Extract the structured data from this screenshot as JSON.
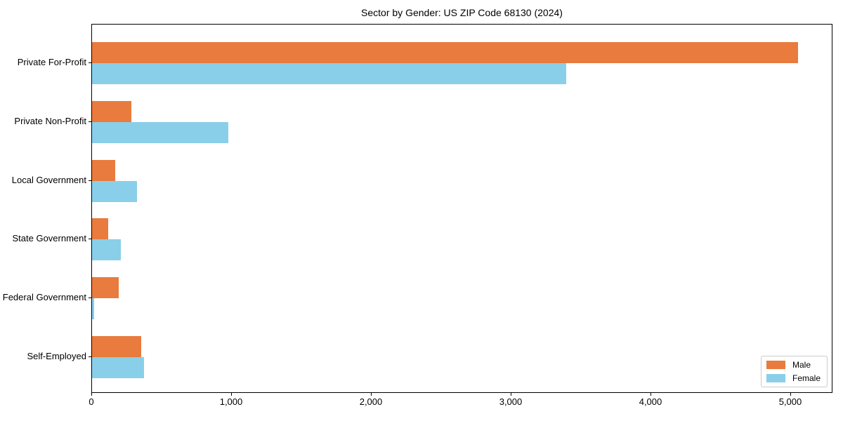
{
  "chart_data": {
    "type": "bar",
    "orientation": "horizontal",
    "title": "Sector by Gender: US ZIP Code 68130 (2024)",
    "categories": [
      "Private For-Profit",
      "Private Non-Profit",
      "Local Government",
      "State Government",
      "Federal Government",
      "Self-Employed"
    ],
    "series": [
      {
        "name": "Male",
        "color": "#e87b3d",
        "values": [
          5050,
          280,
          165,
          115,
          190,
          350
        ]
      },
      {
        "name": "Female",
        "color": "#89cfe9",
        "values": [
          3390,
          975,
          320,
          205,
          15,
          370
        ]
      }
    ],
    "xlabel": "",
    "ylabel": "",
    "xlim": [
      0,
      5300
    ],
    "x_ticks": [
      0,
      1000,
      2000,
      3000,
      4000,
      5000
    ],
    "x_tick_labels": [
      "0",
      "1,000",
      "2,000",
      "3,000",
      "4,000",
      "5,000"
    ],
    "legend_position": "lower right",
    "grid": false,
    "frame_color": "#000000",
    "background_color": "#ffffff"
  }
}
